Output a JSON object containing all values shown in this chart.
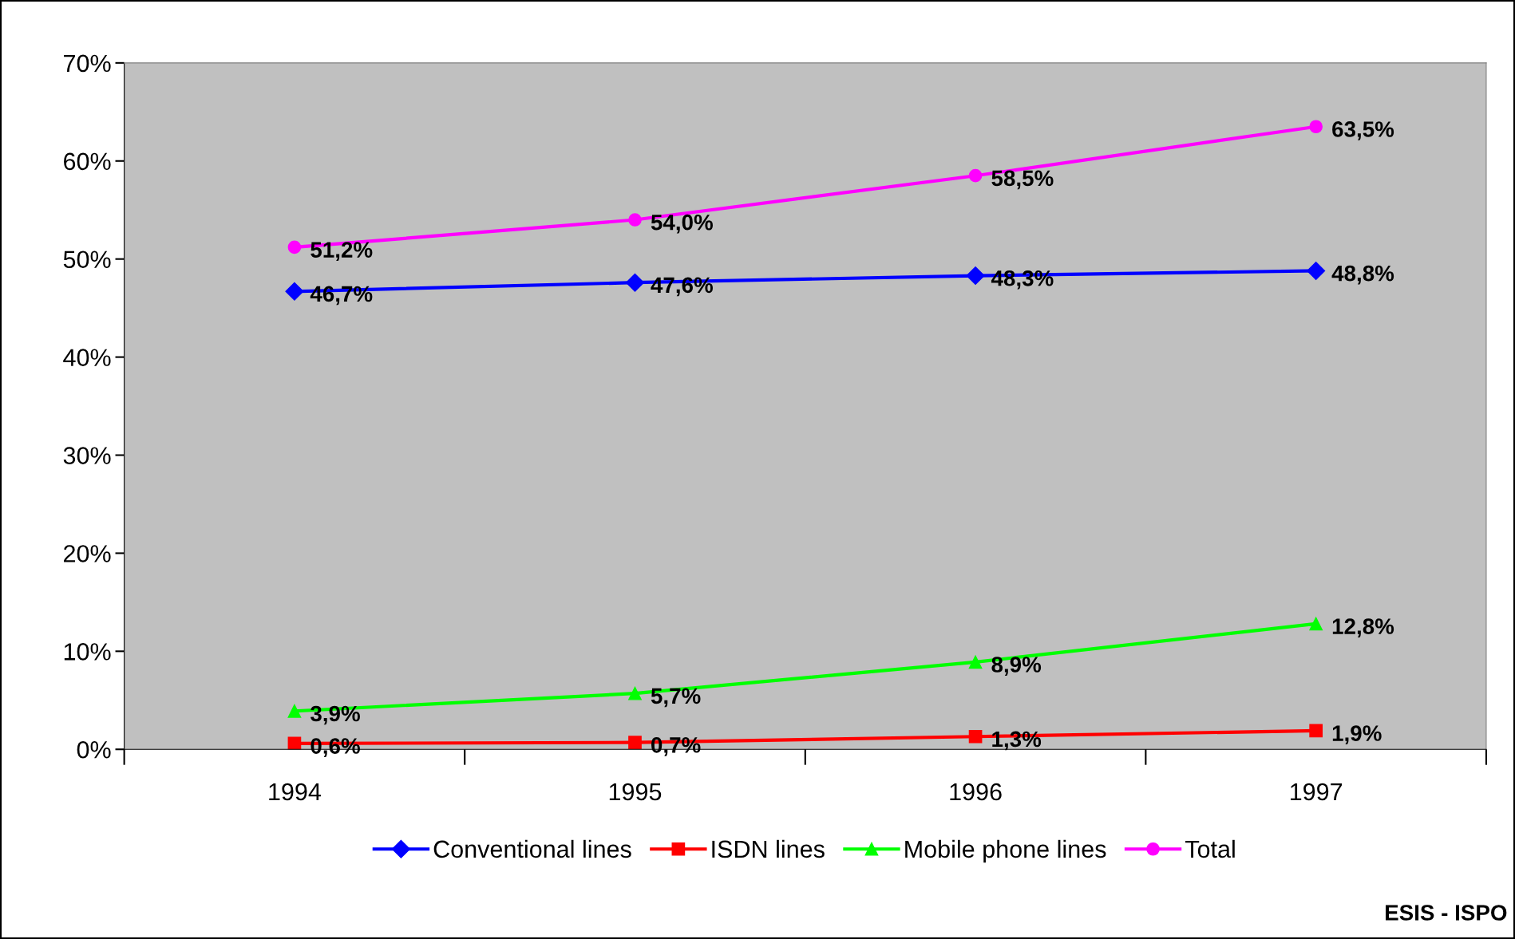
{
  "chart_data": {
    "type": "line",
    "categories": [
      "1994",
      "1995",
      "1996",
      "1997"
    ],
    "series": [
      {
        "name": "Conventional lines",
        "color": "#0000ff",
        "marker": "diamond",
        "values": [
          46.7,
          47.6,
          48.3,
          48.8
        ],
        "value_labels": [
          "46,7%",
          "47,6%",
          "48,3%",
          "48,8%"
        ]
      },
      {
        "name": "ISDN lines",
        "color": "#ff0000",
        "marker": "square",
        "values": [
          0.6,
          0.7,
          1.3,
          1.9
        ],
        "value_labels": [
          "0,6%",
          "0,7%",
          "1,3%",
          "1,9%"
        ]
      },
      {
        "name": "Mobile phone lines",
        "color": "#00ff00",
        "marker": "triangle",
        "values": [
          3.9,
          5.7,
          8.9,
          12.8
        ],
        "value_labels": [
          "3,9%",
          "5,7%",
          "8,9%",
          "12,8%"
        ]
      },
      {
        "name": "Total",
        "color": "#ff00ff",
        "marker": "circle",
        "values": [
          51.2,
          54.0,
          58.5,
          63.5
        ],
        "value_labels": [
          "51,2%",
          "54,0%",
          "58,5%",
          "63,5%"
        ]
      }
    ],
    "ylim": [
      0,
      70
    ],
    "yticks": [
      {
        "value": 0,
        "label": "0%"
      },
      {
        "value": 10,
        "label": "10%"
      },
      {
        "value": 20,
        "label": "20%"
      },
      {
        "value": 30,
        "label": "30%"
      },
      {
        "value": 40,
        "label": "40%"
      },
      {
        "value": 50,
        "label": "50%"
      },
      {
        "value": 60,
        "label": "60%"
      },
      {
        "value": 70,
        "label": "70%"
      }
    ],
    "grid": false,
    "legend": "bottom",
    "line_style": "solid",
    "annotations": [
      "ESIS - ISPO"
    ]
  }
}
